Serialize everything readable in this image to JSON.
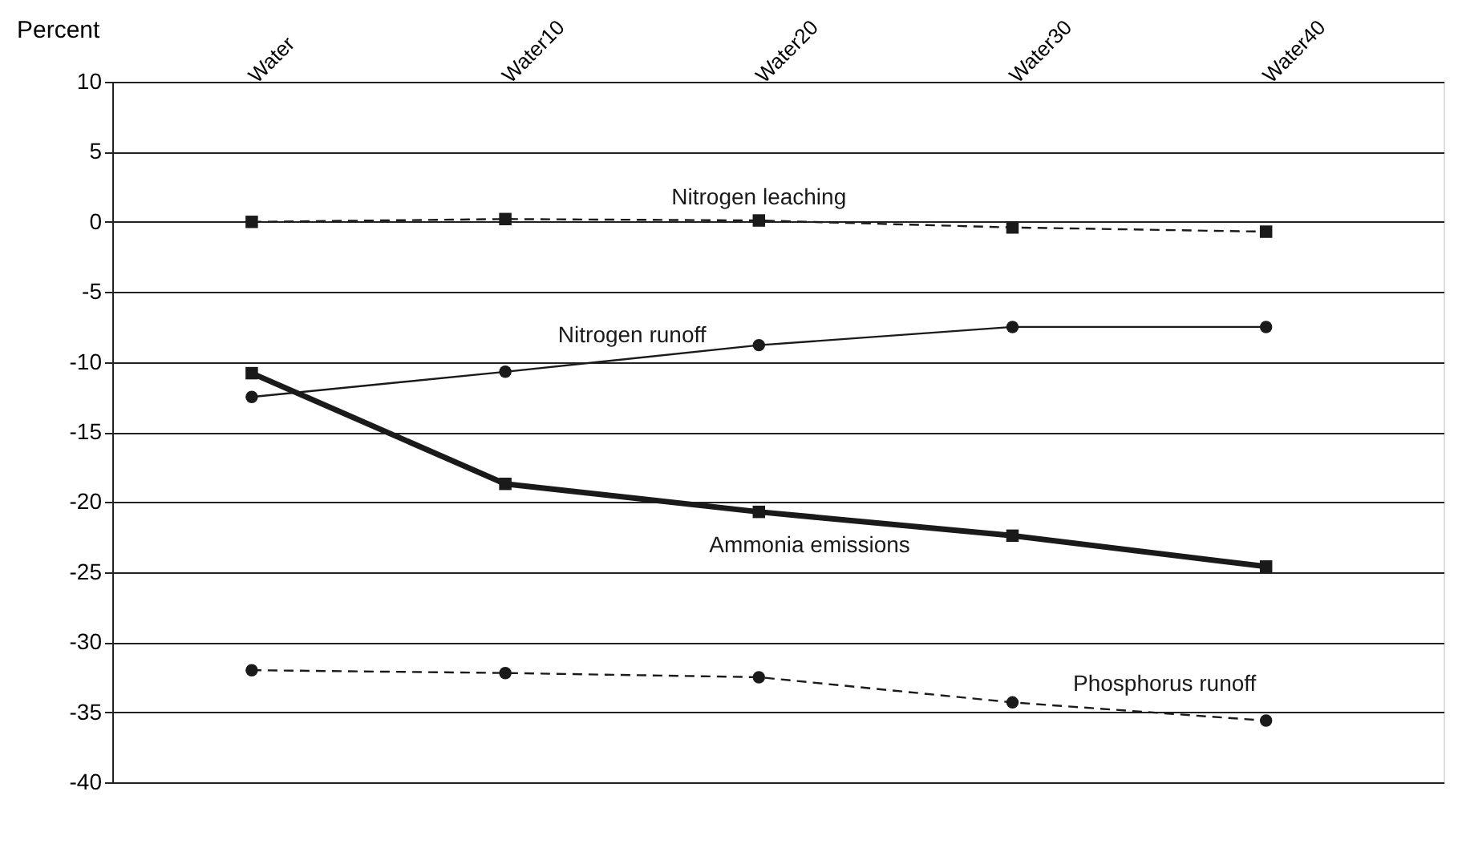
{
  "chart_data": {
    "type": "line",
    "ylabel": "Percent",
    "categories": [
      "Water",
      "Water10",
      "Water20",
      "Water30",
      "Water40"
    ],
    "series": [
      {
        "name": "Nitrogen leaching",
        "color": "#1a1a1a",
        "marker": "square",
        "line_style": "dashed",
        "values": [
          0,
          0.2,
          0.1,
          -0.4,
          -0.7
        ]
      },
      {
        "name": "Nitrogen runoff",
        "color": "#1a1a1a",
        "marker": "circle",
        "line_style": "solid",
        "values": [
          -12.5,
          -10.7,
          -8.8,
          -7.5,
          -7.5
        ]
      },
      {
        "name": "Ammonia emissions",
        "color": "#1a1a1a",
        "marker": "square",
        "line_style": "solid",
        "values": [
          -10.8,
          -18.7,
          -20.7,
          -22.4,
          -24.6
        ]
      },
      {
        "name": "Phosphorus runoff",
        "color": "#1a1a1a",
        "marker": "circle",
        "line_style": "dashed",
        "values": [
          -32,
          -32.2,
          -32.5,
          -34.3,
          -35.6
        ]
      }
    ],
    "ylim": [
      -40,
      10
    ],
    "yticks": [
      -40,
      -35,
      -30,
      -25,
      -20,
      -15,
      -10,
      -5,
      0,
      5,
      10
    ],
    "grid": "y"
  }
}
